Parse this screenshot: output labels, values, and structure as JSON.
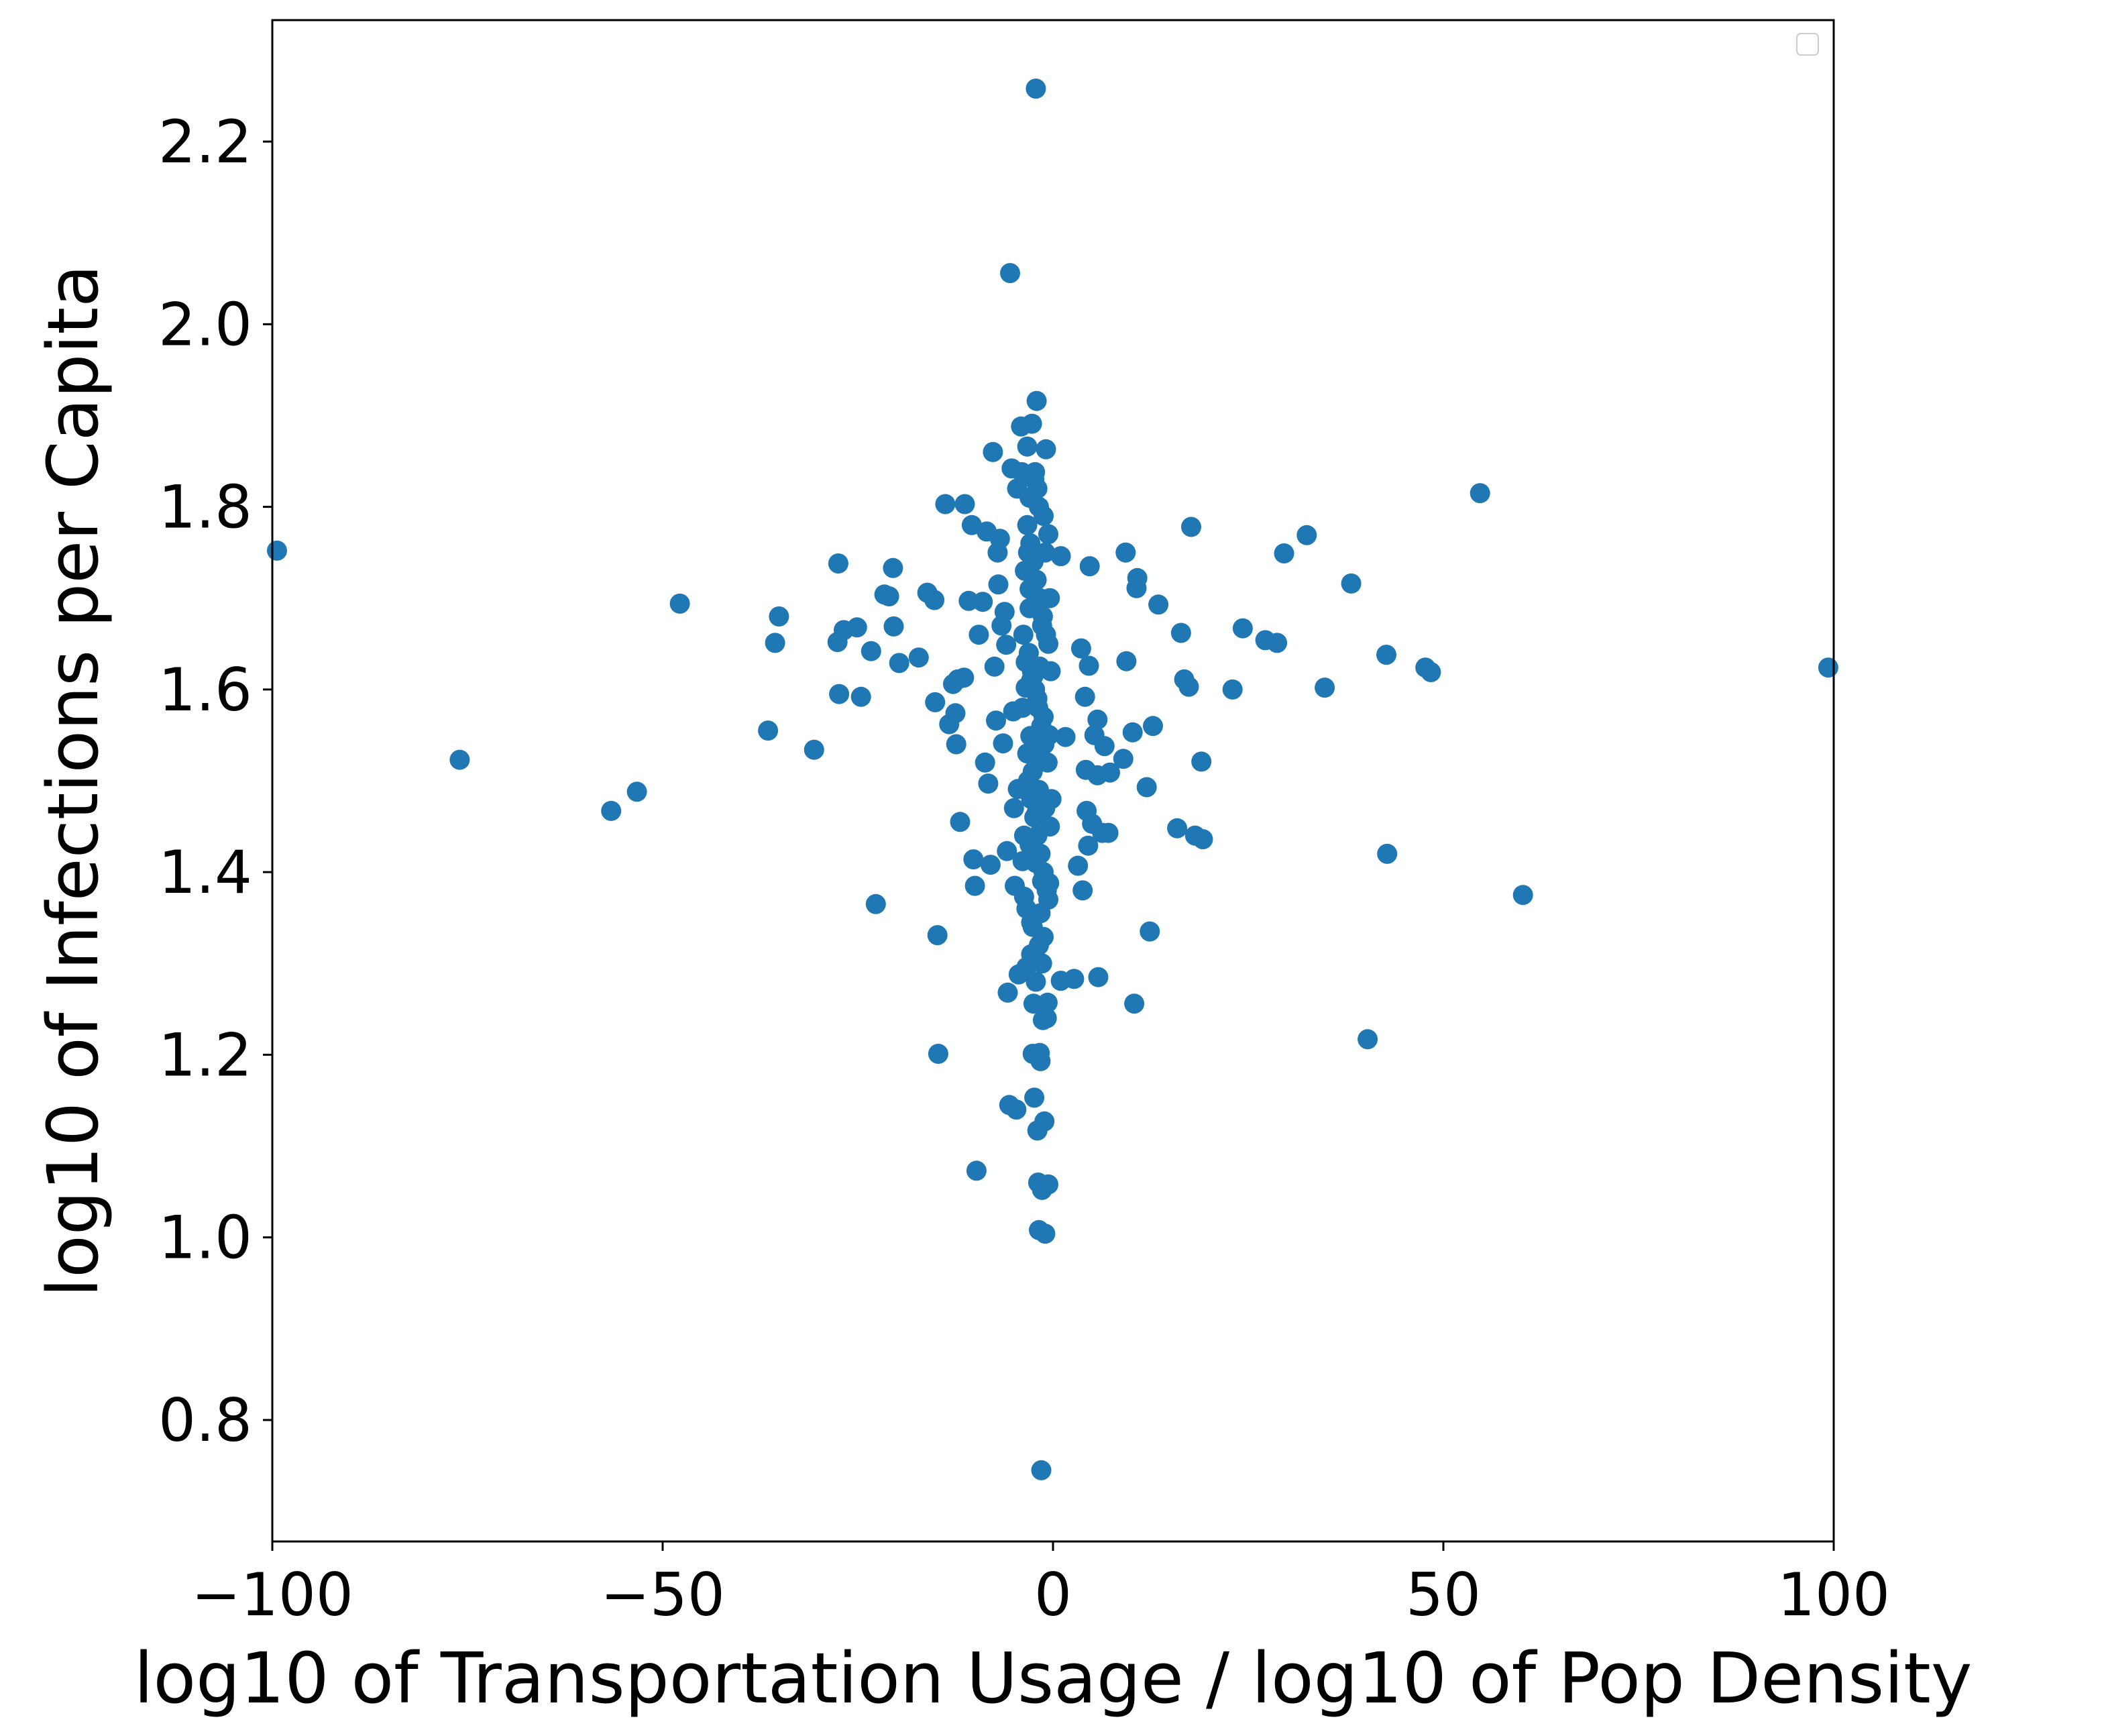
{
  "chart_data": {
    "type": "scatter",
    "xlabel": "log10 of Transportation Usage / log10 of Pop Density",
    "ylabel": "log10 of Infections per Capita",
    "xlim": [
      -100,
      100
    ],
    "ylim": [
      0.667,
      2.333
    ],
    "xticks": [
      -100,
      -50,
      0,
      50,
      100
    ],
    "xtick_labels": [
      "−100",
      "−50",
      "0",
      "50",
      "100"
    ],
    "yticks": [
      0.8,
      1.0,
      1.2,
      1.4,
      1.6,
      1.8,
      2.0,
      2.2
    ],
    "ytick_labels": [
      "0.8",
      "1.0",
      "1.2",
      "1.4",
      "1.6",
      "1.8",
      "2.0",
      "2.2"
    ],
    "grid": false,
    "legend": {
      "placement": "top-right",
      "entries": []
    },
    "series": [
      {
        "color": "#1f77b4",
        "points": [
          [
            -99.4,
            1.752
          ],
          [
            -76.0,
            1.523
          ],
          [
            -56.6,
            1.467
          ],
          [
            -53.3,
            1.488
          ],
          [
            -47.8,
            1.694
          ],
          [
            -36.5,
            1.555
          ],
          [
            -35.6,
            1.651
          ],
          [
            -35.1,
            1.68
          ],
          [
            -30.6,
            1.534
          ],
          [
            -27.5,
            1.738
          ],
          [
            -27.6,
            1.652
          ],
          [
            -26.8,
            1.665
          ],
          [
            -27.4,
            1.595
          ],
          [
            -25.1,
            1.668
          ],
          [
            -24.6,
            1.592
          ],
          [
            -23.3,
            1.642
          ],
          [
            -22.7,
            1.365
          ],
          [
            -21.6,
            1.704
          ],
          [
            -21.0,
            1.702
          ],
          [
            -20.5,
            1.733
          ],
          [
            -20.4,
            1.669
          ],
          [
            -19.7,
            1.629
          ],
          [
            -17.2,
            1.635
          ],
          [
            -16.1,
            1.706
          ],
          [
            -15.2,
            1.698
          ],
          [
            -15.1,
            1.586
          ],
          [
            -14.8,
            1.331
          ],
          [
            -14.7,
            1.201
          ],
          [
            -13.8,
            1.803
          ],
          [
            -13.3,
            1.562
          ],
          [
            -12.8,
            1.606
          ],
          [
            -12.5,
            1.574
          ],
          [
            -12.4,
            1.54
          ],
          [
            -12.2,
            1.611
          ],
          [
            -11.9,
            1.455
          ],
          [
            -11.4,
            1.613
          ],
          [
            -11.3,
            1.803
          ],
          [
            -10.8,
            1.697
          ],
          [
            -10.4,
            1.78
          ],
          [
            -10.2,
            1.414
          ],
          [
            -10.0,
            1.385
          ],
          [
            -9.8,
            1.073
          ],
          [
            -9.5,
            1.66
          ],
          [
            -9.0,
            1.696
          ],
          [
            -8.7,
            1.52
          ],
          [
            -8.5,
            1.773
          ],
          [
            -8.3,
            1.497
          ],
          [
            -8.0,
            1.408
          ],
          [
            -7.7,
            1.86
          ],
          [
            -7.5,
            1.625
          ],
          [
            -7.3,
            1.566
          ],
          [
            -7.1,
            1.75
          ],
          [
            -7.0,
            1.715
          ],
          [
            -6.8,
            1.765
          ],
          [
            -6.6,
            1.67
          ],
          [
            -6.4,
            1.541
          ],
          [
            -6.2,
            1.685
          ],
          [
            -6.0,
            1.649
          ],
          [
            -5.9,
            1.423
          ],
          [
            -5.8,
            1.268
          ],
          [
            -5.6,
            1.145
          ],
          [
            -5.5,
            2.056
          ],
          [
            -5.3,
            1.842
          ],
          [
            -5.1,
            1.576
          ],
          [
            -5.0,
            1.47
          ],
          [
            -4.9,
            1.385
          ],
          [
            -4.7,
            1.14
          ],
          [
            -4.6,
            1.82
          ],
          [
            -4.5,
            1.491
          ],
          [
            -4.4,
            1.288
          ],
          [
            -4.1,
            1.888
          ],
          [
            -4.0,
            1.838
          ],
          [
            -3.9,
            1.412
          ],
          [
            -3.7,
            1.373
          ],
          [
            -3.5,
            1.602
          ],
          [
            -3.4,
            1.296
          ],
          [
            -3.3,
            1.866
          ],
          [
            -3.2,
            1.75
          ],
          [
            -3.0,
            1.689
          ],
          [
            -2.9,
            1.549
          ],
          [
            -2.8,
            1.31
          ],
          [
            -2.7,
            1.891
          ],
          [
            -2.6,
            1.201
          ],
          [
            -2.5,
            1.256
          ],
          [
            -2.4,
            1.153
          ],
          [
            -2.3,
            1.838
          ],
          [
            -2.2,
            2.258
          ],
          [
            -2.1,
            1.916
          ],
          [
            -2.0,
            1.117
          ],
          [
            -1.9,
            1.06
          ],
          [
            -1.8,
            1.008
          ],
          [
            -1.7,
            1.202
          ],
          [
            -1.6,
            1.193
          ],
          [
            -1.5,
            0.745
          ],
          [
            -1.4,
            1.052
          ],
          [
            -1.3,
            1.238
          ],
          [
            -1.2,
            1.329
          ],
          [
            -1.1,
            1.127
          ],
          [
            -1.0,
            1.004
          ],
          [
            -0.9,
            1.863
          ],
          [
            -0.8,
            1.24
          ],
          [
            -0.7,
            1.257
          ],
          [
            -0.6,
            1.058
          ],
          [
            -0.5,
            1.388
          ],
          [
            -3.3,
            1.78
          ],
          [
            -2.9,
            1.76
          ],
          [
            -2.5,
            1.74
          ],
          [
            -2.1,
            1.72
          ],
          [
            -1.7,
            1.7
          ],
          [
            -1.3,
            1.68
          ],
          [
            -0.9,
            1.66
          ],
          [
            -3.1,
            1.64
          ],
          [
            -2.7,
            1.62
          ],
          [
            -2.3,
            1.6
          ],
          [
            -1.9,
            1.58
          ],
          [
            -1.5,
            1.56
          ],
          [
            -1.1,
            1.54
          ],
          [
            -0.7,
            1.52
          ],
          [
            -3.2,
            1.5
          ],
          [
            -2.8,
            1.48
          ],
          [
            -2.4,
            1.46
          ],
          [
            -2.0,
            1.44
          ],
          [
            -1.6,
            1.42
          ],
          [
            -1.2,
            1.4
          ],
          [
            -0.8,
            1.38
          ],
          [
            -3.4,
            1.36
          ],
          [
            -2.6,
            1.34
          ],
          [
            -1.8,
            1.32
          ],
          [
            -1.4,
            1.3
          ],
          [
            -2.2,
            1.28
          ],
          [
            -3.0,
            1.81
          ],
          [
            -2.4,
            1.83
          ],
          [
            -1.8,
            1.8
          ],
          [
            -1.2,
            1.79
          ],
          [
            -0.6,
            1.77
          ],
          [
            -3.6,
            1.73
          ],
          [
            -3.0,
            1.71
          ],
          [
            -2.2,
            1.69
          ],
          [
            -1.4,
            1.67
          ],
          [
            -0.6,
            1.65
          ],
          [
            -3.5,
            1.63
          ],
          [
            -2.8,
            1.61
          ],
          [
            -2.0,
            1.59
          ],
          [
            -1.2,
            1.57
          ],
          [
            -0.5,
            1.55
          ],
          [
            -3.3,
            1.53
          ],
          [
            -2.6,
            1.51
          ],
          [
            -1.8,
            1.49
          ],
          [
            -1.0,
            1.47
          ],
          [
            -0.4,
            1.45
          ],
          [
            -3.0,
            1.43
          ],
          [
            -2.2,
            1.41
          ],
          [
            -1.4,
            1.39
          ],
          [
            -0.6,
            1.37
          ],
          [
            -2.8,
            1.345
          ],
          [
            -1.6,
            1.355
          ],
          [
            -2.0,
            1.82
          ],
          [
            -1.0,
            1.75
          ],
          [
            -0.4,
            1.7
          ],
          [
            -3.8,
            1.66
          ],
          [
            -0.3,
            1.62
          ],
          [
            -3.9,
            1.58
          ],
          [
            -0.2,
            1.48
          ],
          [
            -3.7,
            1.44
          ],
          [
            -2.5,
            1.545
          ],
          [
            -2.5,
            1.615
          ],
          [
            -1.7,
            1.625
          ],
          [
            -1.9,
            1.525
          ],
          [
            -2.1,
            1.465
          ],
          [
            1.0,
            1.746
          ],
          [
            1.6,
            1.548
          ],
          [
            1.0,
            1.281
          ],
          [
            2.7,
            1.283
          ],
          [
            3.2,
            1.407
          ],
          [
            3.6,
            1.645
          ],
          [
            3.8,
            1.38
          ],
          [
            4.1,
            1.592
          ],
          [
            4.2,
            1.512
          ],
          [
            4.3,
            1.467
          ],
          [
            4.5,
            1.429
          ],
          [
            4.6,
            1.626
          ],
          [
            4.7,
            1.735
          ],
          [
            5.0,
            1.453
          ],
          [
            5.3,
            1.55
          ],
          [
            5.7,
            1.567
          ],
          [
            5.7,
            1.506
          ],
          [
            5.8,
            1.285
          ],
          [
            6.3,
            1.443
          ],
          [
            6.6,
            1.538
          ],
          [
            7.1,
            1.443
          ],
          [
            7.3,
            1.509
          ],
          [
            9.0,
            1.524
          ],
          [
            9.3,
            1.75
          ],
          [
            9.4,
            1.631
          ],
          [
            10.2,
            1.553
          ],
          [
            10.4,
            1.256
          ],
          [
            10.7,
            1.711
          ],
          [
            10.8,
            1.722
          ],
          [
            12.0,
            1.493
          ],
          [
            12.4,
            1.335
          ],
          [
            12.8,
            1.56
          ],
          [
            13.5,
            1.693
          ],
          [
            15.9,
            1.448
          ],
          [
            16.4,
            1.662
          ],
          [
            16.8,
            1.611
          ],
          [
            17.4,
            1.603
          ],
          [
            17.7,
            1.778
          ],
          [
            18.2,
            1.44
          ],
          [
            19.0,
            1.521
          ],
          [
            19.2,
            1.436
          ],
          [
            23.0,
            1.6
          ],
          [
            24.3,
            1.667
          ],
          [
            27.2,
            1.654
          ],
          [
            28.7,
            1.651
          ],
          [
            29.6,
            1.749
          ],
          [
            32.5,
            1.769
          ],
          [
            34.8,
            1.602
          ],
          [
            38.2,
            1.716
          ],
          [
            40.3,
            1.217
          ],
          [
            42.7,
            1.638
          ],
          [
            42.8,
            1.42
          ],
          [
            47.7,
            1.624
          ],
          [
            48.4,
            1.619
          ],
          [
            54.7,
            1.815
          ],
          [
            60.2,
            1.375
          ],
          [
            99.3,
            1.624
          ]
        ]
      }
    ]
  }
}
